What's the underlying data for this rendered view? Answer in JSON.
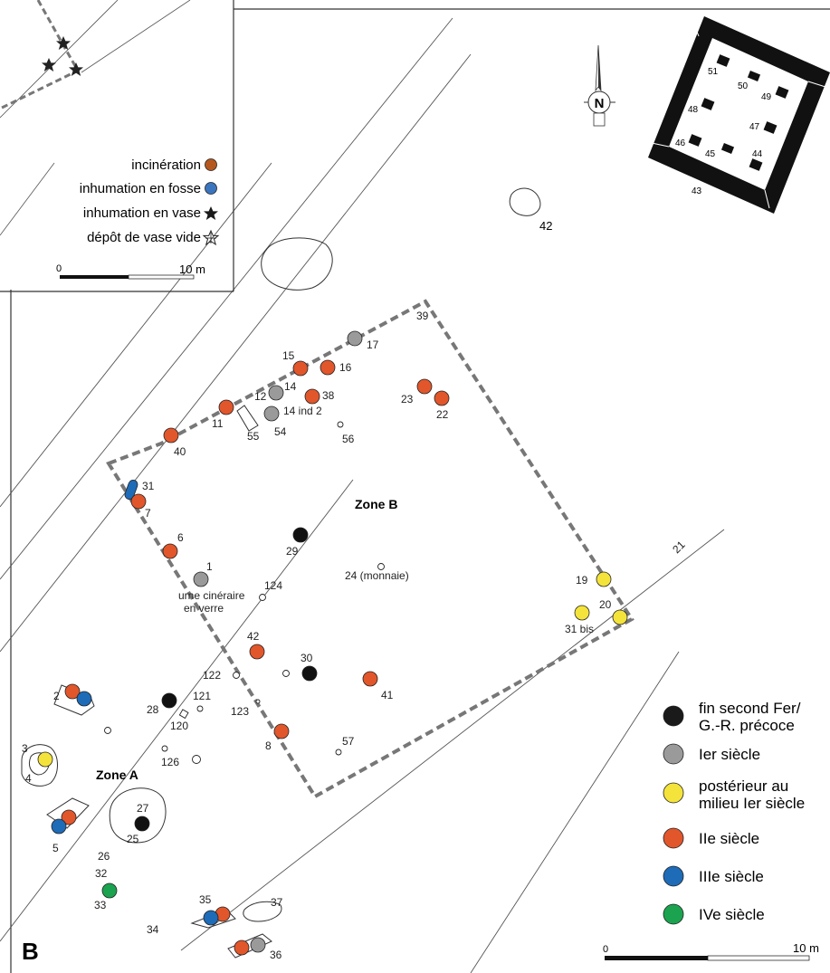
{
  "legend_top": {
    "items": [
      {
        "label": "incinération",
        "color": "#b5581f",
        "symbol": "dot"
      },
      {
        "label": "inhumation en fosse",
        "color": "#3b75bd",
        "symbol": "dot"
      },
      {
        "label": "inhumation en vase",
        "color": "#1a1a1a",
        "symbol": "star"
      },
      {
        "label": "dépôt de vase vide",
        "color": "#1a1a1a",
        "symbol": "outline-star"
      }
    ],
    "scale": {
      "start": "0",
      "end": "10 m"
    }
  },
  "legend_bottom": {
    "items": [
      {
        "label_lines": [
          "fin second Fer/",
          "G.-R. précoce"
        ],
        "color": "#1a1a1a"
      },
      {
        "label_lines": [
          "Ier siècle"
        ],
        "color": "#9a9a9a"
      },
      {
        "label_lines": [
          "postérieur au",
          "milieu Ier siècle"
        ],
        "color": "#f4e33b"
      },
      {
        "label_lines": [
          "IIe siècle"
        ],
        "color": "#e2562b"
      },
      {
        "label_lines": [
          "IIIe siècle"
        ],
        "color": "#1e6bb8"
      },
      {
        "label_lines": [
          "IVe siècle"
        ],
        "color": "#1ba350"
      }
    ],
    "scale": {
      "start": "0",
      "end": "10 m"
    }
  },
  "north": "N",
  "zones": [
    "Zone B",
    "Zone A"
  ],
  "panel_letter": "B",
  "features": [
    {
      "label": "17",
      "type": "gray"
    },
    {
      "label": "15",
      "type": "red"
    },
    {
      "label": "16",
      "type": "red"
    },
    {
      "label": "14",
      "type": "gray"
    },
    {
      "label": "12",
      "type": "gray"
    },
    {
      "label": "38",
      "type": "red"
    },
    {
      "label": "14 ind 2",
      "type": "gray"
    },
    {
      "label": "11",
      "type": "red"
    },
    {
      "label": "54",
      "type": "label"
    },
    {
      "label": "55",
      "type": "label"
    },
    {
      "label": "56",
      "type": "label"
    },
    {
      "label": "23",
      "type": "red"
    },
    {
      "label": "22",
      "type": "red"
    },
    {
      "label": "39",
      "type": "label"
    },
    {
      "label": "40",
      "type": "red"
    },
    {
      "label": "31",
      "type": "blue"
    },
    {
      "label": "7",
      "type": "red"
    },
    {
      "label": "6",
      "type": "red"
    },
    {
      "label": "29",
      "type": "black"
    },
    {
      "label": "1",
      "type": "gray"
    },
    {
      "label": "124",
      "type": "label"
    },
    {
      "label": "24 (monnaie)",
      "type": "label"
    },
    {
      "label": "19",
      "type": "yellow"
    },
    {
      "label": "20",
      "type": "yellow"
    },
    {
      "label": "31 bis",
      "type": "yellow"
    },
    {
      "label": "21",
      "type": "label"
    },
    {
      "label": "42",
      "type": "red"
    },
    {
      "label": "30",
      "type": "black"
    },
    {
      "label": "41",
      "type": "red"
    },
    {
      "label": "122",
      "type": "label"
    },
    {
      "label": "123",
      "type": "label"
    },
    {
      "label": "121",
      "type": "label"
    },
    {
      "label": "120",
      "type": "label"
    },
    {
      "label": "28",
      "type": "black"
    },
    {
      "label": "8",
      "type": "red"
    },
    {
      "label": "57",
      "type": "label"
    },
    {
      "label": "2",
      "type": "red"
    },
    {
      "label": "3",
      "type": "yellow"
    },
    {
      "label": "4",
      "type": "label"
    },
    {
      "label": "126",
      "type": "label"
    },
    {
      "label": "5",
      "type": "red"
    },
    {
      "label": "27",
      "type": "black"
    },
    {
      "label": "25",
      "type": "label"
    },
    {
      "label": "26",
      "type": "label"
    },
    {
      "label": "32",
      "type": "label"
    },
    {
      "label": "33",
      "type": "green"
    },
    {
      "label": "34",
      "type": "label"
    },
    {
      "label": "35",
      "type": "red"
    },
    {
      "label": "37",
      "type": "label"
    },
    {
      "label": "36",
      "type": "red"
    },
    {
      "label": "42",
      "type": "label"
    },
    {
      "label": "43",
      "type": "label"
    },
    {
      "label": "44",
      "type": "label"
    },
    {
      "label": "45",
      "type": "label"
    },
    {
      "label": "46",
      "type": "label"
    },
    {
      "label": "47",
      "type": "label"
    },
    {
      "label": "48",
      "type": "label"
    },
    {
      "label": "49",
      "type": "label"
    },
    {
      "label": "50",
      "type": "label"
    },
    {
      "label": "51",
      "type": "label"
    }
  ],
  "glass_urn_label_lines": [
    "urne cinéraire",
    "en verre"
  ]
}
